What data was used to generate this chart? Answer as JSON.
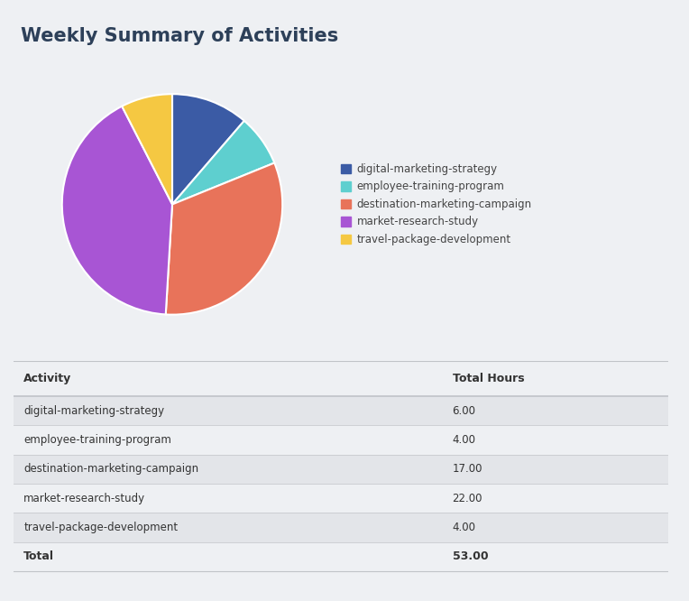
{
  "title": "Weekly Summary of Activities",
  "title_color": "#2d4059",
  "background_color": "#eef0f3",
  "activities": [
    "digital-marketing-strategy",
    "employee-training-program",
    "destination-marketing-campaign",
    "market-research-study",
    "travel-package-development"
  ],
  "hours": [
    6.0,
    4.0,
    17.0,
    22.0,
    4.0
  ],
  "total": 53.0,
  "colors": [
    "#3b5ba5",
    "#5ecfcf",
    "#e8735a",
    "#a855d4",
    "#f5c842"
  ],
  "table_header_activity": "Activity",
  "table_header_hours": "Total Hours",
  "table_bg_alt": "#e3e5e9",
  "table_bg_main": "#eef0f3",
  "table_text_color": "#333333",
  "legend_text_color": "#444444",
  "pie_startangle": 90,
  "pie_counterclock": false
}
